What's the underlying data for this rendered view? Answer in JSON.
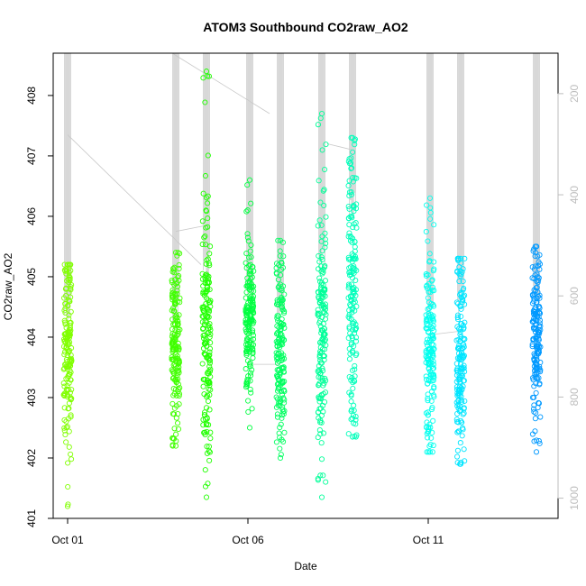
{
  "chart_data": {
    "type": "scatter",
    "title": "ATOM3 Southbound CO2raw_AO2",
    "xlabel": "Date",
    "ylabel": "CO2raw_AO2",
    "x_ticks": [
      "Oct 01",
      "Oct 06",
      "Oct 11"
    ],
    "x_tick_days": [
      1,
      6,
      11
    ],
    "xlim_days": [
      0.6,
      14.6
    ],
    "ylim": [
      401,
      408.7
    ],
    "y_ticks": [
      401,
      402,
      403,
      404,
      405,
      406,
      407,
      408
    ],
    "secondary_axis": {
      "ticks": [
        200,
        400,
        600,
        800,
        1000
      ],
      "range": [
        120,
        1040
      ],
      "inverted": true,
      "color": "#bdbdbd"
    },
    "series": [
      {
        "x": 1.0,
        "y_low": 401.2,
        "y_high": 405.2,
        "q_low": 402.8,
        "q_high": 404.9,
        "color": "#80ff00"
      },
      {
        "x": 4.0,
        "y_low": 402.2,
        "y_high": 405.4,
        "q_low": 402.9,
        "q_high": 404.9,
        "color": "#40ff00"
      },
      {
        "x": 4.85,
        "y_low": 401.35,
        "y_high": 408.4,
        "q_low": 402.5,
        "q_high": 405.6,
        "color": "#20ff00"
      },
      {
        "x": 6.05,
        "y_low": 402.5,
        "y_high": 406.6,
        "q_low": 403.3,
        "q_high": 405.2,
        "color": "#00ff40"
      },
      {
        "x": 6.9,
        "y_low": 402.0,
        "y_high": 405.6,
        "q_low": 402.8,
        "q_high": 404.8,
        "color": "#00ff60"
      },
      {
        "x": 8.05,
        "y_low": 401.35,
        "y_high": 407.7,
        "q_low": 402.6,
        "q_high": 405.8,
        "color": "#00ff99"
      },
      {
        "x": 8.9,
        "y_low": 402.35,
        "y_high": 407.3,
        "q_low": 403.2,
        "q_high": 406.6,
        "color": "#00ffbb"
      },
      {
        "x": 11.05,
        "y_low": 402.1,
        "y_high": 406.3,
        "q_low": 402.6,
        "q_high": 404.9,
        "color": "#00ffee"
      },
      {
        "x": 11.9,
        "y_low": 401.9,
        "y_high": 405.3,
        "q_low": 402.6,
        "q_high": 405.0,
        "color": "#00e5ff"
      },
      {
        "x": 14.0,
        "y_low": 402.1,
        "y_high": 405.5,
        "q_low": 402.9,
        "q_high": 405.0,
        "color": "#0099ff"
      }
    ]
  }
}
